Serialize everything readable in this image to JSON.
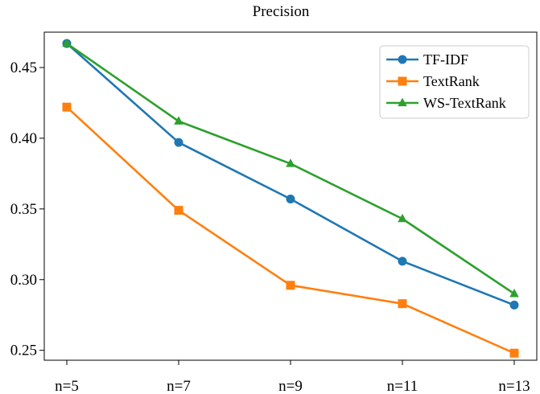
{
  "chart_data": {
    "type": "line",
    "title": "Precision",
    "xlabel": "",
    "ylabel": "",
    "categories": [
      "n=5",
      "n=7",
      "n=9",
      "n=11",
      "n=13"
    ],
    "ylim": [
      0.243,
      0.475
    ],
    "yticks": [
      0.25,
      0.3,
      0.35,
      0.4,
      0.45
    ],
    "ytick_labels": [
      "0.25",
      "0.30",
      "0.35",
      "0.40",
      "0.45"
    ],
    "grid": false,
    "legend_position": "top-right",
    "series": [
      {
        "name": "TF-IDF",
        "color": "#1f77b4",
        "marker": "circle",
        "values": [
          0.467,
          0.397,
          0.357,
          0.313,
          0.282
        ]
      },
      {
        "name": "TextRank",
        "color": "#ff7f0e",
        "marker": "square",
        "values": [
          0.422,
          0.349,
          0.296,
          0.283,
          0.248
        ]
      },
      {
        "name": "WS-TextRank",
        "color": "#2ca02c",
        "marker": "triangle",
        "values": [
          0.467,
          0.412,
          0.382,
          0.343,
          0.29
        ]
      }
    ]
  }
}
